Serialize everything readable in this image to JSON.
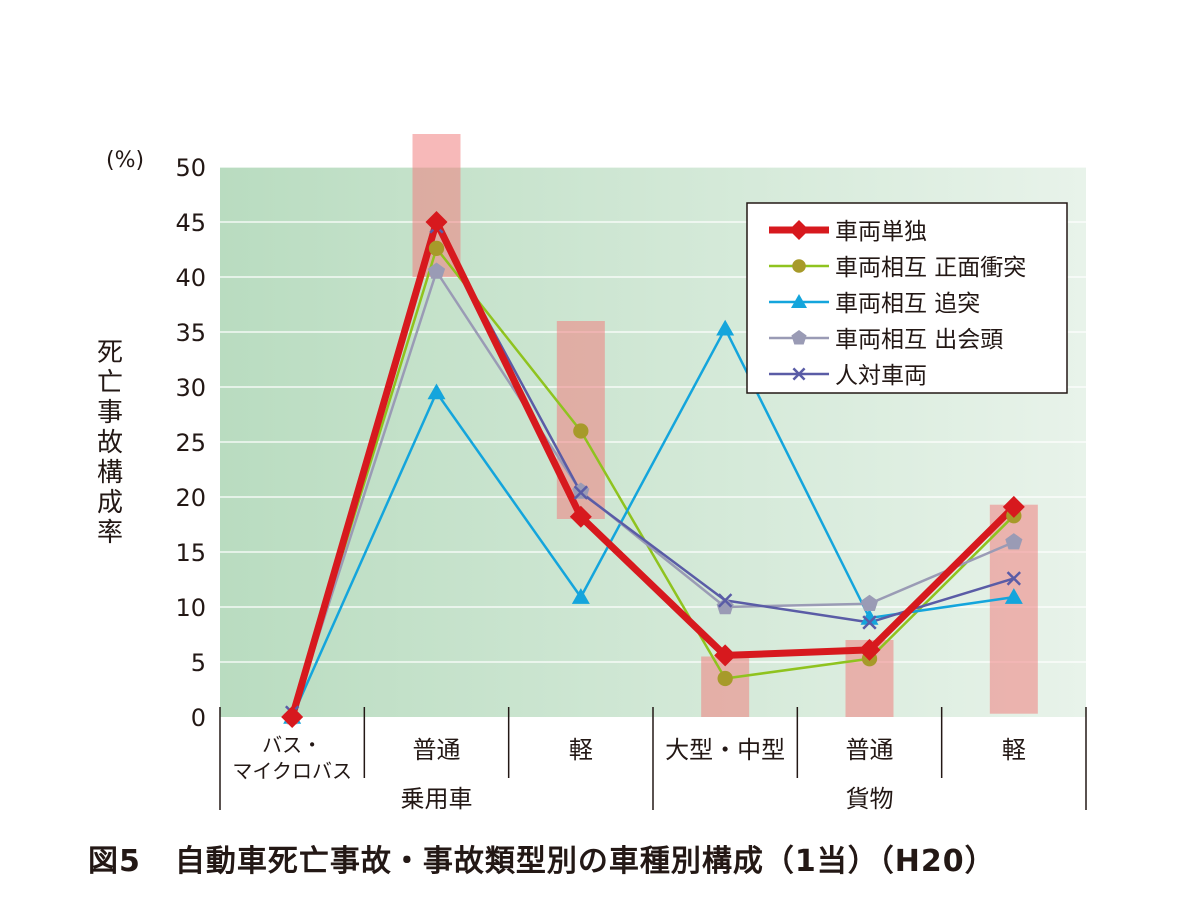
{
  "chart_data": {
    "type": "line",
    "title": "",
    "caption_number": "図5",
    "caption_text": "自動車死亡事故・事故類型別の車種別構成（1当）（H20）",
    "ylabel": "死亡事故構成率",
    "y_unit": "(%)",
    "ylim": [
      0,
      50
    ],
    "yticks": [
      0,
      5,
      10,
      15,
      20,
      25,
      30,
      35,
      40,
      45,
      50
    ],
    "grid": true,
    "legend_position": "top-right",
    "categories": [
      "バス・マイクロバス",
      "普通",
      "軽",
      "大型・中型",
      "普通",
      "軽"
    ],
    "category_lines": [
      [
        "バス・",
        "マイクロバス"
      ],
      [
        "普通"
      ],
      [
        "軽"
      ],
      [
        "大型・中型"
      ],
      [
        "普通"
      ],
      [
        "軽"
      ]
    ],
    "groups": [
      {
        "label": "乗用車",
        "span": [
          0,
          2
        ]
      },
      {
        "label": "貨物",
        "span": [
          3,
          5
        ]
      }
    ],
    "highlight_bars": [
      {
        "category_index": 1,
        "from": 40,
        "to": 53
      },
      {
        "category_index": 2,
        "from": 18,
        "to": 36
      },
      {
        "category_index": 3,
        "from": 0,
        "to": 5.5
      },
      {
        "category_index": 4,
        "from": 0,
        "to": 7
      },
      {
        "category_index": 5,
        "from": 0.3,
        "to": 19.3
      }
    ],
    "series": [
      {
        "name": "車両単独",
        "color": "#d7191e",
        "marker": "diamond",
        "width": 7,
        "values": [
          0,
          45,
          18.2,
          5.6,
          6.1,
          19.1
        ]
      },
      {
        "name": "車両相互 正面衝突",
        "color": "#8fc31f",
        "marker": "circle",
        "width": 2.5,
        "values": [
          0,
          42.6,
          26,
          3.5,
          5.3,
          18.3
        ]
      },
      {
        "name": "車両相互 追突",
        "color": "#14a5dc",
        "marker": "triangle",
        "width": 2.5,
        "values": [
          0,
          29.5,
          10.9,
          35.3,
          9,
          10.9
        ]
      },
      {
        "name": "車両相互 出会頭",
        "color": "#9a9bb5",
        "marker": "pentagon",
        "width": 2.5,
        "values": [
          0,
          40.5,
          20.5,
          10,
          10.3,
          15.9
        ]
      },
      {
        "name": "人対車両",
        "color": "#5a5ca6",
        "marker": "x",
        "width": 2.5,
        "values": [
          0.4,
          44.6,
          20.4,
          10.6,
          8.6,
          12.6
        ]
      }
    ]
  }
}
